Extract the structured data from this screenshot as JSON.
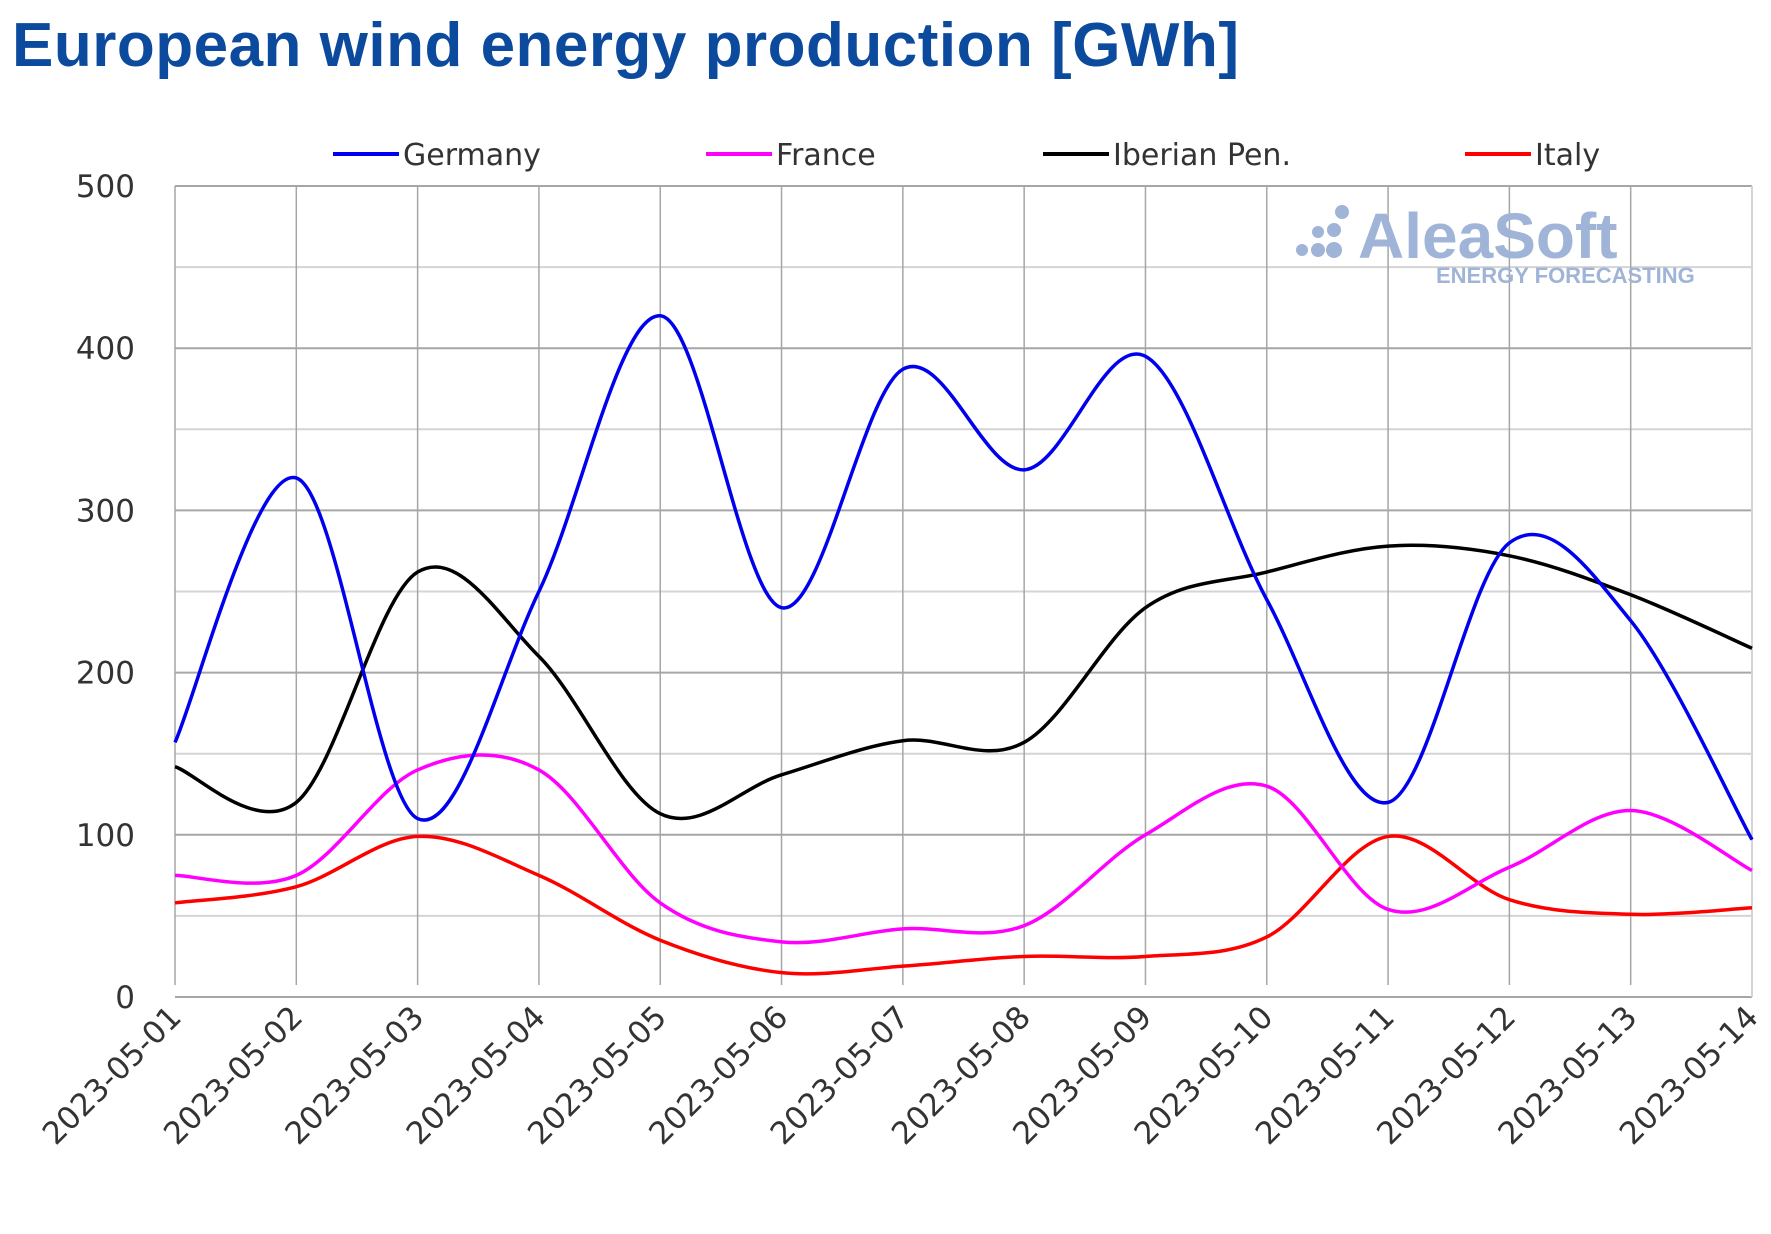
{
  "chart_data": {
    "type": "line",
    "title": "European wind energy production [GWh]",
    "xlabel": "",
    "ylabel": "",
    "ylim": [
      0,
      500
    ],
    "yticks": [
      "0",
      "100",
      "200",
      "300",
      "400",
      "500"
    ],
    "grid": true,
    "legend_position": "top",
    "categories": [
      "2023-05-01",
      "2023-05-02",
      "2023-05-03",
      "2023-05-04",
      "2023-05-05",
      "2023-05-06",
      "2023-05-07",
      "2023-05-08",
      "2023-05-09",
      "2023-05-10",
      "2023-05-11",
      "2023-05-12",
      "2023-05-13",
      "2023-05-14"
    ],
    "series": [
      {
        "name": "Germany",
        "color": "#0000ee",
        "values": [
          157,
          320,
          110,
          250,
          420,
          240,
          387,
          325,
          395,
          245,
          120,
          280,
          232,
          97
        ]
      },
      {
        "name": "France",
        "color": "#ff00ff",
        "values": [
          75,
          75,
          140,
          140,
          58,
          34,
          42,
          44,
          100,
          130,
          54,
          80,
          115,
          78
        ]
      },
      {
        "name": "Iberian Pen.",
        "color": "#000000",
        "values": [
          142,
          120,
          262,
          210,
          113,
          137,
          158,
          157,
          240,
          262,
          278,
          272,
          248,
          215
        ]
      },
      {
        "name": "Italy",
        "color": "#ff0000",
        "values": [
          58,
          68,
          99,
          75,
          35,
          15,
          19,
          25,
          25,
          37,
          99,
          60,
          51,
          55
        ]
      }
    ],
    "watermark": {
      "brand": "AleaSoft",
      "tagline": "ENERGY FORECASTING"
    }
  }
}
